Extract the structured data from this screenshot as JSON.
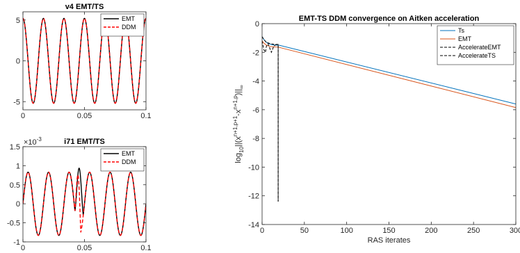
{
  "chart_data": [
    {
      "type": "line",
      "title": "v4 EMT/TS",
      "xlim": [
        0,
        0.1
      ],
      "ylim": [
        -6,
        6
      ],
      "xticks": [
        0,
        0.05,
        0.1
      ],
      "xtick_labels": [
        "0",
        "0.05",
        "0.1"
      ],
      "yticks": [
        5,
        0,
        -5
      ],
      "ytick_labels": [
        "5",
        "0",
        "-5"
      ],
      "grid": false,
      "legend_position": "top-right",
      "series": [
        {
          "name": "EMT",
          "style": "solid",
          "color": "#000000",
          "function": "sine",
          "amplitude": 5.2,
          "frequency_hz": 60,
          "phase_deg": 90
        },
        {
          "name": "DDM",
          "style": "dashed",
          "color": "#ff0000",
          "function": "sine",
          "amplitude": 5.2,
          "frequency_hz": 60,
          "phase_deg": 90
        }
      ]
    },
    {
      "type": "line",
      "title": "i71 EMT/TS",
      "exponent_label": "×10",
      "exponent_power": "-3",
      "xlim": [
        0,
        0.1
      ],
      "ylim": [
        -0.001,
        0.0015
      ],
      "xticks": [
        0,
        0.05,
        0.1
      ],
      "xtick_labels": [
        "0",
        "0.05",
        "0.1"
      ],
      "yticks": [
        0.0015,
        0.001,
        0.0005,
        0,
        -0.0005,
        -0.001
      ],
      "ytick_labels": [
        "1.5",
        "1",
        "0.5",
        "0",
        "-0.5",
        "-1"
      ],
      "grid": false,
      "legend_position": "top-right",
      "series": [
        {
          "name": "EMT",
          "style": "solid",
          "color": "#000000",
          "function": "sine",
          "amplitude": 0.00083,
          "frequency_hz": 60,
          "phase_deg": 0,
          "disturbance": {
            "x_start": 0.0423,
            "x_end": 0.049,
            "peak": 0.00113
          }
        },
        {
          "name": "DDM",
          "style": "dashed",
          "color": "#ff0000",
          "function": "sine",
          "amplitude": 0.00083,
          "frequency_hz": 60,
          "phase_deg": 0,
          "disturbance": {
            "x_start": 0.0423,
            "x_end": 0.047,
            "peak": 0.00093
          }
        }
      ]
    },
    {
      "type": "line",
      "title": "EMT-TS DDM convergence on Aitken acceleration",
      "xlabel": "RAS iterates",
      "xlim": [
        0,
        300
      ],
      "ylim": [
        -14,
        0
      ],
      "xticks": [
        0,
        50,
        100,
        150,
        200,
        250,
        300
      ],
      "xtick_labels": [
        "0",
        "50",
        "100",
        "150",
        "200",
        "250",
        "300"
      ],
      "yticks": [
        0,
        -2,
        -4,
        -6,
        -8,
        -10,
        -12,
        -14
      ],
      "ytick_labels": [
        "0",
        "-2",
        "-4",
        "-6",
        "-8",
        "-10",
        "-12",
        "-14"
      ],
      "grid": false,
      "legend_position": "top-right",
      "series": [
        {
          "name": "Ts",
          "style": "solid",
          "color": "#0072bd",
          "x": [
            0,
            2,
            5,
            10,
            15,
            20,
            300
          ],
          "y": [
            -0.9,
            -1.1,
            -1.3,
            -1.45,
            -1.5,
            -1.5,
            -5.6
          ]
        },
        {
          "name": "EMT",
          "style": "solid",
          "color": "#d95319",
          "x": [
            0,
            2,
            5,
            10,
            15,
            20,
            300
          ],
          "y": [
            -1.2,
            -1.35,
            -1.5,
            -1.6,
            -1.62,
            -1.65,
            -5.85
          ]
        },
        {
          "name": "AccelerateEMT",
          "style": "dashed",
          "color": "#000000",
          "x": [
            0,
            2,
            4,
            5,
            7,
            9,
            11,
            14,
            17,
            19,
            19
          ],
          "y": [
            -1.2,
            -1.8,
            -2.0,
            -1.6,
            -1.4,
            -1.7,
            -2.0,
            -1.55,
            -1.45,
            -1.5,
            -12.4
          ]
        },
        {
          "name": "AccelerateTS",
          "style": "dashed",
          "color": "#000000",
          "x": [
            0,
            2,
            5,
            10,
            15,
            19,
            19
          ],
          "y": [
            -0.9,
            -1.1,
            -1.3,
            -1.4,
            -1.45,
            -1.45,
            -12.4
          ]
        }
      ]
    }
  ]
}
